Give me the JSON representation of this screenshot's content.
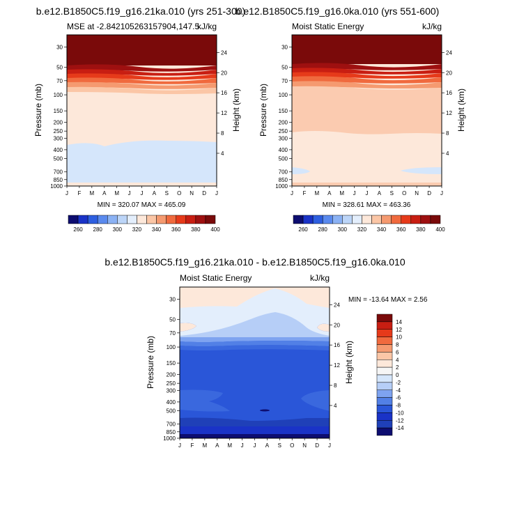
{
  "chart_data": [
    {
      "type": "heatmap",
      "title": "b.e12.B1850C5.f19_g16.21ka.010 (yrs 251-300)",
      "left_label": "MSE at -2.84210526315790‌4,147.5",
      "left_label_raw": "MSE at -2.842105263157904,147.5",
      "units": "kJ/kg",
      "xlabel": "",
      "ylabel": "Pressure (mb)",
      "y2label": "Height (km)",
      "x": [
        "J",
        "F",
        "M",
        "A",
        "M",
        "J",
        "J",
        "A",
        "S",
        "O",
        "N",
        "D",
        "J"
      ],
      "pressure_ticks": [
        "30",
        "50",
        "70",
        "100",
        "150",
        "200",
        "250",
        "300",
        "400",
        "500",
        "700",
        "850",
        "1000"
      ],
      "height_ticks": [
        "24",
        "20",
        "16",
        "12",
        "8",
        "4"
      ],
      "stats": "MIN = 320.07 MAX = 465.09",
      "levels": [
        "260",
        "280",
        "300",
        "320",
        "340",
        "360",
        "380",
        "400"
      ],
      "colors": [
        "#0d0d70",
        "#1a33c7",
        "#2e5fe0",
        "#5a8aee",
        "#8bb2f4",
        "#bcd5f8",
        "#e3eefc",
        "#fde8da",
        "#fbc6a6",
        "#f59a70",
        "#f06a3e",
        "#e63a1a",
        "#c81e12",
        "#9e1010",
        "#7a0a0a"
      ],
      "fields": [
        {
          "p_top": 1000,
          "p_bot": 330,
          "class": 5
        },
        {
          "p_top": 330,
          "p_bot": 110,
          "class": 7
        },
        {
          "p_top": 110,
          "p_bot": 90,
          "class": 8
        },
        {
          "p_top": 90,
          "p_bot": 75,
          "class": 9
        },
        {
          "p_top": 75,
          "p_bot": 62,
          "class": 10
        },
        {
          "p_top": 62,
          "p_bot": 52,
          "class": 11
        },
        {
          "p_top": 52,
          "p_bot": 45,
          "class": 12
        },
        {
          "p_top": 45,
          "p_bot": 20,
          "class": 14
        }
      ],
      "colorbar_ticks": [
        "260",
        "280",
        "300",
        "320",
        "340",
        "360",
        "380",
        "400"
      ]
    },
    {
      "type": "heatmap",
      "title": "b.e12.B1850C5.f19_g16.0ka.010 (yrs 551-600)",
      "left_label": "Moist Static Energy",
      "units": "kJ/kg",
      "ylabel": "Pressure (mb)",
      "y2label": "Height (km)",
      "x": [
        "J",
        "F",
        "M",
        "A",
        "M",
        "J",
        "J",
        "A",
        "S",
        "O",
        "N",
        "D",
        "J"
      ],
      "pressure_ticks": [
        "30",
        "50",
        "70",
        "100",
        "150",
        "200",
        "250",
        "300",
        "400",
        "500",
        "700",
        "850",
        "1000"
      ],
      "height_ticks": [
        "24",
        "20",
        "16",
        "12",
        "8",
        "4"
      ],
      "stats": "MIN = 328.61 MAX = 463.36",
      "colorbar_ticks": [
        "260",
        "280",
        "300",
        "320",
        "340",
        "360",
        "380",
        "400"
      ]
    },
    {
      "type": "heatmap",
      "title": "b.e12.B1850C5.f19_g16.21ka.010 - b.e12.B1850C5.f19_g16.0ka.010",
      "left_label": "Moist Static Energy",
      "units": "kJ/kg",
      "ylabel": "Pressure (mb)",
      "y2label": "Height (km)",
      "x": [
        "J",
        "F",
        "M",
        "A",
        "M",
        "J",
        "J",
        "A",
        "S",
        "O",
        "N",
        "D",
        "J"
      ],
      "pressure_ticks": [
        "30",
        "50",
        "70",
        "100",
        "150",
        "200",
        "250",
        "300",
        "400",
        "500",
        "700",
        "850",
        "1000"
      ],
      "height_ticks": [
        "24",
        "20",
        "16",
        "12",
        "8",
        "4"
      ],
      "stats": "MIN = -13.64 MAX =   2.56",
      "colorbar_ticks": [
        "14",
        "12",
        "10",
        "8",
        "6",
        "4",
        "2",
        "0",
        "-2",
        "-4",
        "-6",
        "-8",
        "-10",
        "-12",
        "-14"
      ]
    }
  ]
}
